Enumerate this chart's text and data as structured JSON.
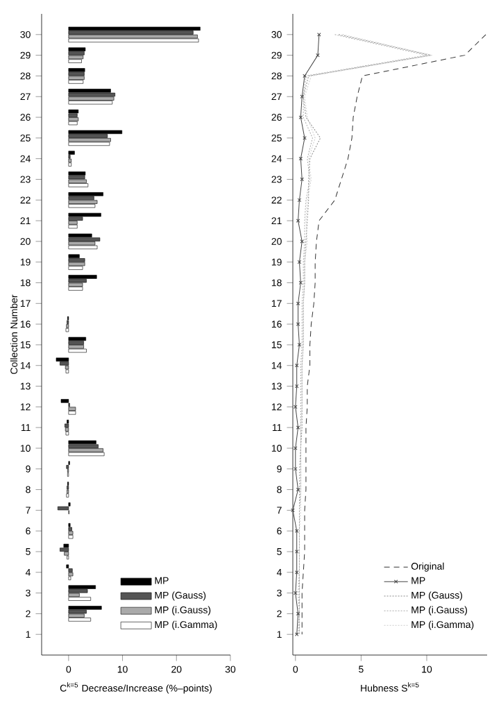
{
  "chart_data": [
    {
      "type": "bar",
      "orientation": "horizontal",
      "xlabel": "C$^{k=5}$ Decrease/Increase (%–points)",
      "ylabel": "Collection Number",
      "categories": [
        "30",
        "29",
        "28",
        "27",
        "26",
        "25",
        "24",
        "23",
        "22",
        "21",
        "20",
        "19",
        "18",
        "17",
        "16",
        "15",
        "14",
        "13",
        "12",
        "11",
        "10",
        "9",
        "8",
        "7",
        "6",
        "5",
        "4",
        "3",
        "2",
        "1"
      ],
      "xlim": [
        -5,
        30
      ],
      "xticks": [
        0,
        10,
        20,
        30
      ],
      "legend": "bottom right",
      "series": [
        {
          "name": "MP",
          "color": "#000000",
          "values": [
            24.4,
            3.1,
            3.0,
            7.8,
            1.8,
            9.9,
            1.1,
            3.1,
            6.4,
            6.0,
            4.3,
            2.0,
            5.2,
            null,
            -0.2,
            3.2,
            -2.3,
            null,
            -1.4,
            -0.3,
            5.1,
            0.2,
            -0.2,
            0.3,
            0.3,
            -0.9,
            -0.4,
            5.0,
            6.1,
            null
          ]
        },
        {
          "name": "MP (Gauss)",
          "color": "#555555",
          "values": [
            23.1,
            2.9,
            2.9,
            8.6,
            1.6,
            7.2,
            0.3,
            3.0,
            4.7,
            2.6,
            5.8,
            3.0,
            3.3,
            null,
            -0.3,
            2.8,
            -1.6,
            null,
            0.2,
            -0.7,
            5.5,
            -0.4,
            -0.3,
            -2.0,
            0.6,
            -1.6,
            0.7,
            3.5,
            3.3,
            null
          ]
        },
        {
          "name": "MP (i.Gauss)",
          "color": "#aaaaaa",
          "values": [
            23.9,
            2.7,
            2.9,
            8.4,
            1.8,
            7.8,
            0.5,
            3.3,
            5.3,
            1.6,
            4.9,
            3.0,
            2.6,
            null,
            -0.4,
            2.8,
            -0.6,
            null,
            1.3,
            -0.6,
            6.4,
            -0.2,
            -0.3,
            0.1,
            0.8,
            -0.8,
            0.8,
            2.0,
            2.9,
            null
          ]
        },
        {
          "name": "MP (i.Gamma)",
          "color": "#ffffff",
          "values": [
            24.1,
            2.4,
            2.7,
            8.1,
            1.6,
            7.6,
            0.5,
            3.6,
            4.9,
            1.6,
            5.3,
            2.6,
            2.6,
            null,
            -0.5,
            3.3,
            -0.5,
            null,
            1.3,
            -0.5,
            6.6,
            -0.2,
            -0.4,
            null,
            0.8,
            -0.3,
            0.4,
            4.1,
            4.1,
            null
          ]
        }
      ]
    },
    {
      "type": "line",
      "orientation": "horizontal",
      "xlabel": "Hubness S$^{k=5}$",
      "categories": [
        "30",
        "29",
        "28",
        "27",
        "26",
        "25",
        "24",
        "23",
        "22",
        "21",
        "20",
        "19",
        "18",
        "17",
        "16",
        "15",
        "14",
        "13",
        "12",
        "11",
        "10",
        "9",
        "8",
        "7",
        "6",
        "5",
        "4",
        "3",
        "2",
        "1"
      ],
      "xlim": [
        -0.2,
        14.6
      ],
      "xticks": [
        0,
        5,
        10
      ],
      "legend": "bottom right",
      "series": [
        {
          "name": "Original",
          "color": "#333333",
          "line_style": "dashed",
          "marker": "none",
          "values": [
            14.5,
            12.9,
            5.1,
            4.7,
            4.4,
            4.3,
            4.0,
            3.5,
            3.0,
            1.8,
            1.6,
            1.5,
            1.5,
            1.4,
            1.2,
            1.1,
            1.1,
            0.9,
            0.9,
            0.8,
            0.8,
            0.8,
            0.8,
            0.7,
            0.7,
            0.7,
            0.6,
            0.5,
            0.5,
            0.5
          ]
        },
        {
          "name": "MP",
          "color": "#444444",
          "line_style": "solid",
          "marker": "cross",
          "values": [
            1.8,
            1.7,
            0.7,
            0.5,
            0.4,
            0.7,
            0.4,
            0.5,
            0.3,
            0.2,
            0.5,
            0.3,
            0.4,
            0.2,
            0.2,
            0.3,
            0.1,
            0.1,
            0,
            0.2,
            0,
            0,
            0.2,
            -0.2,
            0.1,
            0.1,
            0.1,
            0,
            0.2,
            0.1
          ]
        },
        {
          "name": "MP (Gauss)",
          "color": "#888888",
          "line_style": "dotted",
          "marker": "none",
          "values": [
            3.3,
            10.3,
            1.0,
            0.6,
            0.8,
            1.9,
            1.1,
            1.0,
            1.0,
            0.9,
            0.8,
            0.7,
            0.7,
            0.6,
            0.6,
            0.6,
            0.5,
            0.5,
            0.5,
            0.5,
            0.4,
            0.4,
            0.4,
            0.3,
            0.3,
            0.3,
            0.3,
            0.3,
            0.3,
            0.3
          ]
        },
        {
          "name": "MP (i.Gauss)",
          "color": "#aaaaaa",
          "line_style": "dotted",
          "marker": "none",
          "values": [
            3.0,
            10.0,
            0.8,
            0.6,
            0.6,
            1.3,
            0.9,
            1.1,
            0.8,
            0.7,
            0.7,
            0.6,
            0.6,
            0.5,
            0.5,
            0.5,
            0.4,
            0.4,
            0.4,
            0.4,
            0.4,
            0.3,
            0.3,
            0.3,
            0.3,
            0.3,
            0.3,
            0.2,
            0.3,
            0.2
          ]
        },
        {
          "name": "MP (i.Gamma)",
          "color": "#cccccc",
          "line_style": "dotted",
          "marker": "none",
          "values": [
            3.6,
            10.4,
            1.2,
            0.7,
            0.9,
            1.5,
            1.0,
            1.2,
            0.9,
            0.8,
            0.9,
            0.7,
            0.7,
            0.6,
            0.6,
            0.6,
            0.5,
            0.5,
            0.5,
            0.4,
            0.4,
            0.4,
            0.4,
            0.4,
            0.3,
            0.3,
            0.3,
            0.3,
            0.3,
            0.3
          ]
        }
      ]
    }
  ]
}
